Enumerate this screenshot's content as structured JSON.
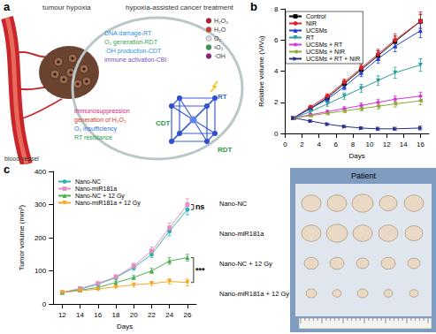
{
  "panel_labels": [
    "a",
    "b",
    "c"
  ],
  "diagram": {
    "header_left": "tumour hypoxia",
    "header_right": "hypoxia-assisted cancer treatment",
    "vessel": "blood vessel",
    "treatments": [
      "DNA damage-RT",
      "O₂ generation-RDT",
      "·OH production-CDT",
      "immune activation-CBI"
    ],
    "hypoxia_effects": [
      "immunosuppression",
      "generation of H₂O₂",
      "O₂ insufficiency",
      "RT resistance"
    ],
    "species": [
      "H₂O₂",
      "H₂O",
      "O₂",
      "¹O₂",
      "·OH"
    ],
    "modalities": [
      "CDT",
      "RT",
      "RDT"
    ]
  },
  "photo": {
    "title": "Patient",
    "rows": [
      "Nano-NC",
      "Nano-miR181a",
      "Nano-NC + 12 Gy",
      "Nano-miR181a + 12 Gy"
    ]
  },
  "chart_data": [
    {
      "type": "line",
      "x_label": "Days",
      "y_label": "Relative volume (V/V₀)",
      "x": [
        1,
        3,
        5,
        7,
        9,
        11,
        13,
        16
      ],
      "xlim": [
        0,
        17
      ],
      "xticks": [
        0,
        2,
        4,
        6,
        8,
        10,
        12,
        14,
        16
      ],
      "ylim": [
        0,
        8
      ],
      "yticks": [
        0,
        2,
        4,
        6,
        8
      ],
      "grid": false,
      "legend": "upper left",
      "series": [
        {
          "name": "Control",
          "color": "#000000",
          "marker": "square",
          "line_style": "solid",
          "values": [
            1,
            1.6,
            2.3,
            3.2,
            4.1,
            5.0,
            5.9,
            7.2
          ],
          "errors": [
            0.05,
            0.1,
            0.15,
            0.2,
            0.25,
            0.3,
            0.35,
            0.45
          ]
        },
        {
          "name": "NIR",
          "color": "#e0212b",
          "marker": "circle",
          "line_style": "solid",
          "values": [
            1,
            1.7,
            2.4,
            3.3,
            4.2,
            5.1,
            6.0,
            7.2
          ],
          "errors": [
            0.05,
            0.1,
            0.15,
            0.2,
            0.25,
            0.3,
            0.4,
            0.6
          ]
        },
        {
          "name": "UCSMs",
          "color": "#1f3fd6",
          "marker": "triangle",
          "line_style": "solid",
          "values": [
            1,
            1.6,
            2.2,
            3.0,
            3.9,
            4.8,
            5.6,
            6.6
          ],
          "errors": [
            0.05,
            0.1,
            0.15,
            0.2,
            0.25,
            0.3,
            0.35,
            0.45
          ]
        },
        {
          "name": "RT",
          "color": "#2aa198",
          "marker": "triangle-down",
          "line_style": "solid",
          "values": [
            1,
            1.4,
            1.9,
            2.4,
            2.9,
            3.4,
            3.9,
            4.4
          ],
          "errors": [
            0.05,
            0.1,
            0.15,
            0.2,
            0.25,
            0.3,
            0.35,
            0.4
          ]
        },
        {
          "name": "UCSMs + RT",
          "color": "#d633d6",
          "marker": "diamond",
          "line_style": "solid",
          "values": [
            1,
            1.2,
            1.4,
            1.6,
            1.8,
            2.0,
            2.2,
            2.4
          ],
          "errors": [
            0.05,
            0.08,
            0.1,
            0.12,
            0.15,
            0.2,
            0.2,
            0.25
          ]
        },
        {
          "name": "UCSMs + NIR",
          "color": "#8fa832",
          "marker": "triangle-left",
          "line_style": "solid",
          "values": [
            1,
            1.15,
            1.3,
            1.45,
            1.6,
            1.75,
            1.9,
            2.1
          ],
          "errors": [
            0.05,
            0.08,
            0.1,
            0.12,
            0.15,
            0.18,
            0.2,
            0.25
          ]
        },
        {
          "name": "UCSMs + RT + NIR",
          "color": "#2b2b8c",
          "marker": "triangle-right",
          "line_style": "solid",
          "values": [
            1,
            0.8,
            0.6,
            0.45,
            0.35,
            0.3,
            0.3,
            0.35
          ],
          "errors": [
            0.05,
            0.08,
            0.08,
            0.08,
            0.08,
            0.1,
            0.1,
            0.12
          ]
        }
      ]
    },
    {
      "type": "line",
      "x_label": "Days",
      "y_label": "Tumor volume (mm³)",
      "x": [
        12,
        14,
        16,
        18,
        20,
        22,
        24,
        26
      ],
      "xlim": [
        11,
        27
      ],
      "xticks": [
        12,
        14,
        16,
        18,
        20,
        22,
        24,
        26
      ],
      "ylim": [
        0,
        400
      ],
      "yticks": [
        0,
        100,
        200,
        300,
        400
      ],
      "grid": false,
      "legend": "upper left",
      "annotations": [
        {
          "text": "ns",
          "between": [
            "Nano-NC",
            "Nano-miR181a"
          ]
        },
        {
          "text": "***",
          "between": [
            "Nano-NC + 12 Gy",
            "Nano-miR181a + 12 Gy"
          ]
        }
      ],
      "series": [
        {
          "name": "Nano-NC",
          "color": "#2fb0b8",
          "marker": "circle",
          "line_style": "solid",
          "values": [
            35,
            45,
            60,
            80,
            110,
            150,
            220,
            285
          ],
          "errors": [
            3,
            4,
            5,
            6,
            8,
            10,
            14,
            16
          ]
        },
        {
          "name": "Nano-miR181a",
          "color": "#e58fbf",
          "marker": "square",
          "line_style": "solid",
          "values": [
            35,
            47,
            62,
            82,
            115,
            160,
            230,
            300
          ],
          "errors": [
            3,
            4,
            5,
            6,
            8,
            12,
            15,
            18
          ]
        },
        {
          "name": "Nano-NC + 12 Gy",
          "color": "#4caf50",
          "marker": "triangle",
          "line_style": "solid",
          "values": [
            35,
            42,
            50,
            65,
            80,
            100,
            130,
            140
          ],
          "errors": [
            3,
            3,
            4,
            5,
            6,
            8,
            10,
            10
          ]
        },
        {
          "name": "Nano-miR181a + 12 Gy",
          "color": "#f5a623",
          "marker": "triangle-down",
          "line_style": "solid",
          "values": [
            35,
            40,
            45,
            52,
            58,
            62,
            68,
            65
          ],
          "errors": [
            3,
            3,
            4,
            4,
            5,
            6,
            8,
            10
          ]
        }
      ]
    }
  ]
}
